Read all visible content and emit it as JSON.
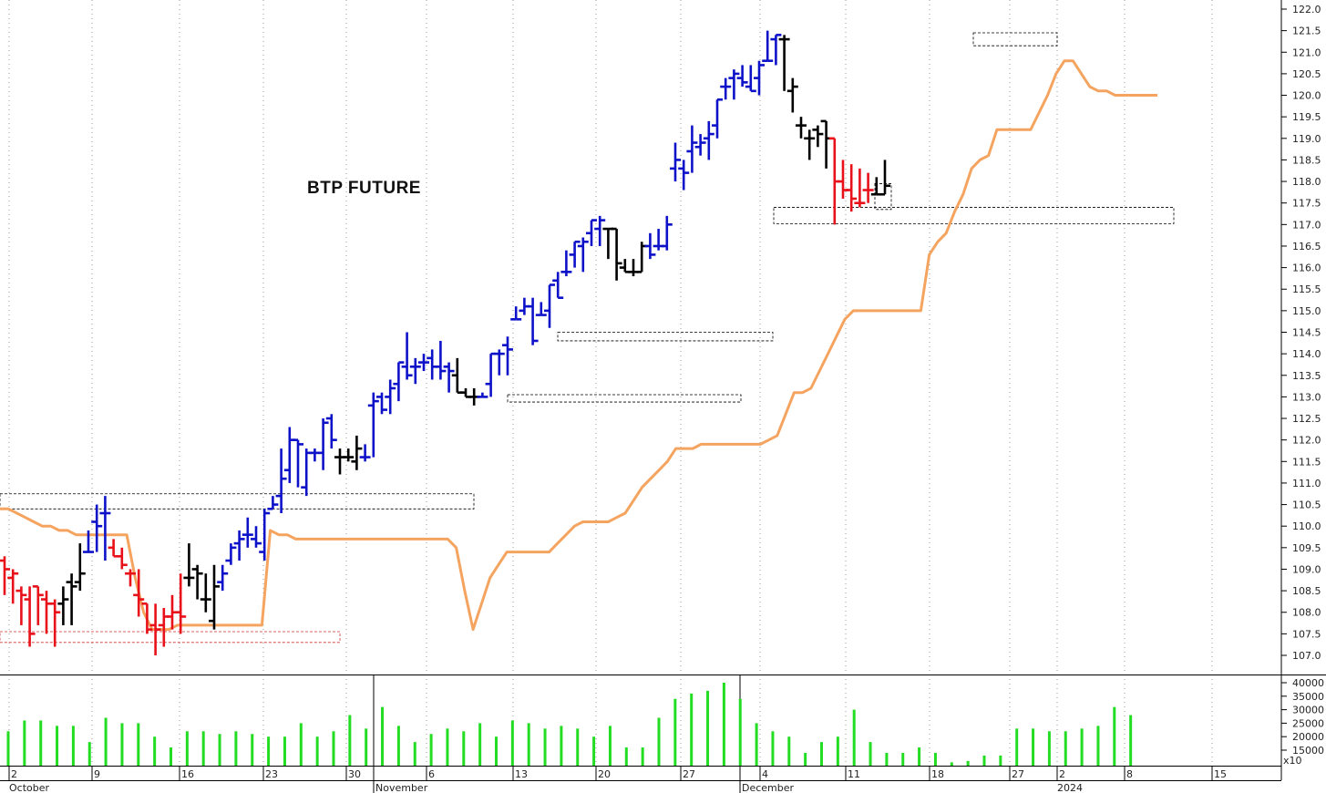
{
  "chart_data": [
    {
      "type": "ohlc",
      "title": "BTP FUTURE",
      "ylim": [
        106.6,
        122.2
      ],
      "yticks": [
        "107.0",
        "107.5",
        "108.0",
        "108.5",
        "109.0",
        "109.5",
        "110.0",
        "110.5",
        "111.0",
        "111.5",
        "112.0",
        "112.5",
        "113.0",
        "113.5",
        "114.0",
        "114.5",
        "115.0",
        "115.5",
        "116.0",
        "116.5",
        "117.0",
        "117.5",
        "118.0",
        "118.5",
        "119.0",
        "119.5",
        "120.0",
        "120.5",
        "121.0",
        "121.5",
        "122.0"
      ],
      "x_day_labels": [
        "2",
        "9",
        "16",
        "23",
        "30",
        "6",
        "13",
        "20",
        "27",
        "4",
        "11",
        "18",
        "27",
        "2",
        "8",
        "15"
      ],
      "x_month_labels": [
        "October",
        "November",
        "December",
        "2024"
      ],
      "grid": "vertical dotted",
      "colors": {
        "blue": "#0d12c9",
        "red": "#e8111a",
        "black": "#000000",
        "line": "#f5a460",
        "volume": "#22dd22"
      },
      "bars": [
        {
          "o": 109.2,
          "h": 109.3,
          "l": 108.4,
          "c": 109.0,
          "col": "red"
        },
        {
          "o": 108.8,
          "h": 109.0,
          "l": 108.2,
          "c": 108.9,
          "col": "red"
        },
        {
          "o": 108.5,
          "h": 108.6,
          "l": 107.7,
          "c": 108.4,
          "col": "red"
        },
        {
          "o": 108.3,
          "h": 108.6,
          "l": 107.2,
          "c": 107.5,
          "col": "red"
        },
        {
          "o": 108.6,
          "h": 108.6,
          "l": 107.7,
          "c": 108.4,
          "col": "red"
        },
        {
          "o": 108.3,
          "h": 108.5,
          "l": 107.5,
          "c": 108.2,
          "col": "red"
        },
        {
          "o": 108.2,
          "h": 108.3,
          "l": 107.2,
          "c": 108.0,
          "col": "red"
        },
        {
          "o": 108.2,
          "h": 108.6,
          "l": 107.7,
          "c": 108.3,
          "col": "black"
        },
        {
          "o": 108.7,
          "h": 108.9,
          "l": 107.7,
          "c": 108.6,
          "col": "black"
        },
        {
          "o": 108.7,
          "h": 109.6,
          "l": 108.5,
          "c": 108.9,
          "col": "black"
        },
        {
          "o": 109.4,
          "h": 109.9,
          "l": 109.4,
          "c": 109.4,
          "col": "blue"
        },
        {
          "o": 110.1,
          "h": 110.5,
          "l": 109.4,
          "c": 110.0,
          "col": "blue"
        },
        {
          "o": 110.3,
          "h": 110.7,
          "l": 109.2,
          "c": 110.3,
          "col": "blue"
        },
        {
          "o": 109.5,
          "h": 109.7,
          "l": 109.3,
          "c": 109.3,
          "col": "red"
        },
        {
          "o": 109.3,
          "h": 109.5,
          "l": 109.0,
          "c": 109.1,
          "col": "red"
        },
        {
          "o": 108.9,
          "h": 109.0,
          "l": 108.6,
          "c": 108.9,
          "col": "red"
        },
        {
          "o": 108.4,
          "h": 109.0,
          "l": 107.9,
          "c": 108.3,
          "col": "red"
        },
        {
          "o": 108.2,
          "h": 108.2,
          "l": 107.5,
          "c": 107.6,
          "col": "red"
        },
        {
          "o": 107.7,
          "h": 108.2,
          "l": 107.0,
          "c": 107.6,
          "col": "red"
        },
        {
          "o": 107.7,
          "h": 108.1,
          "l": 107.2,
          "c": 107.9,
          "col": "red"
        },
        {
          "o": 107.9,
          "h": 108.4,
          "l": 107.6,
          "c": 108.0,
          "col": "red"
        },
        {
          "o": 108.0,
          "h": 108.9,
          "l": 107.5,
          "c": 107.9,
          "col": "red"
        },
        {
          "o": 108.8,
          "h": 109.6,
          "l": 108.6,
          "c": 108.8,
          "col": "black"
        },
        {
          "o": 109.0,
          "h": 109.1,
          "l": 108.3,
          "c": 108.9,
          "col": "black"
        },
        {
          "o": 108.3,
          "h": 108.9,
          "l": 108.0,
          "c": 108.3,
          "col": "black"
        },
        {
          "o": 107.8,
          "h": 109.1,
          "l": 107.6,
          "c": 108.6,
          "col": "black"
        },
        {
          "o": 108.7,
          "h": 109.1,
          "l": 108.5,
          "c": 108.9,
          "col": "blue"
        },
        {
          "o": 109.2,
          "h": 109.6,
          "l": 109.1,
          "c": 109.5,
          "col": "blue"
        },
        {
          "o": 109.6,
          "h": 109.9,
          "l": 109.2,
          "c": 109.7,
          "col": "blue"
        },
        {
          "o": 109.8,
          "h": 110.2,
          "l": 109.5,
          "c": 109.8,
          "col": "blue"
        },
        {
          "o": 109.7,
          "h": 110.0,
          "l": 109.5,
          "c": 109.6,
          "col": "blue"
        },
        {
          "o": 109.4,
          "h": 110.4,
          "l": 109.2,
          "c": 110.3,
          "col": "blue"
        },
        {
          "o": 110.4,
          "h": 110.7,
          "l": 110.4,
          "c": 110.5,
          "col": "blue"
        },
        {
          "o": 110.7,
          "h": 111.8,
          "l": 110.3,
          "c": 111.1,
          "col": "blue"
        },
        {
          "o": 111.3,
          "h": 112.3,
          "l": 111.0,
          "c": 112.0,
          "col": "blue"
        },
        {
          "o": 112.0,
          "h": 112.0,
          "l": 110.9,
          "c": 111.9,
          "col": "blue"
        },
        {
          "o": 110.9,
          "h": 111.8,
          "l": 110.7,
          "c": 111.7,
          "col": "blue"
        },
        {
          "o": 111.7,
          "h": 111.8,
          "l": 111.5,
          "c": 111.7,
          "col": "blue"
        },
        {
          "o": 111.7,
          "h": 112.5,
          "l": 111.3,
          "c": 112.4,
          "col": "blue"
        },
        {
          "o": 112.5,
          "h": 112.6,
          "l": 111.8,
          "c": 112.0,
          "col": "blue"
        },
        {
          "o": 111.6,
          "h": 111.8,
          "l": 111.2,
          "c": 111.6,
          "col": "black"
        },
        {
          "o": 111.6,
          "h": 111.8,
          "l": 111.5,
          "c": 111.6,
          "col": "black"
        },
        {
          "o": 111.5,
          "h": 112.1,
          "l": 111.3,
          "c": 111.8,
          "col": "black"
        },
        {
          "o": 111.6,
          "h": 111.9,
          "l": 111.5,
          "c": 111.6,
          "col": "blue"
        },
        {
          "o": 112.8,
          "h": 113.1,
          "l": 111.6,
          "c": 112.9,
          "col": "blue"
        },
        {
          "o": 113.0,
          "h": 113.1,
          "l": 112.6,
          "c": 112.7,
          "col": "blue"
        },
        {
          "o": 113.0,
          "h": 113.4,
          "l": 112.6,
          "c": 113.2,
          "col": "blue"
        },
        {
          "o": 113.3,
          "h": 113.8,
          "l": 112.9,
          "c": 113.8,
          "col": "blue"
        },
        {
          "o": 113.7,
          "h": 114.5,
          "l": 113.4,
          "c": 113.5,
          "col": "blue"
        },
        {
          "o": 113.7,
          "h": 113.9,
          "l": 113.3,
          "c": 113.7,
          "col": "blue"
        },
        {
          "o": 113.8,
          "h": 114.0,
          "l": 113.6,
          "c": 113.8,
          "col": "blue"
        },
        {
          "o": 113.9,
          "h": 114.1,
          "l": 113.4,
          "c": 113.7,
          "col": "blue"
        },
        {
          "o": 113.7,
          "h": 114.3,
          "l": 113.4,
          "c": 113.6,
          "col": "blue"
        },
        {
          "o": 113.7,
          "h": 113.8,
          "l": 113.1,
          "c": 113.6,
          "col": "blue"
        },
        {
          "o": 113.5,
          "h": 113.9,
          "l": 113.1,
          "c": 113.1,
          "col": "black"
        },
        {
          "o": 113.1,
          "h": 113.2,
          "l": 113.0,
          "c": 113.0,
          "col": "black"
        },
        {
          "o": 113.0,
          "h": 113.2,
          "l": 112.8,
          "c": 113.0,
          "col": "black"
        },
        {
          "o": 113.0,
          "h": 113.1,
          "l": 113.0,
          "c": 113.0,
          "col": "blue"
        },
        {
          "o": 113.3,
          "h": 114.0,
          "l": 113.0,
          "c": 114.0,
          "col": "blue"
        },
        {
          "o": 114.0,
          "h": 114.1,
          "l": 113.5,
          "c": 114.0,
          "col": "blue"
        },
        {
          "o": 114.2,
          "h": 114.4,
          "l": 113.5,
          "c": 114.1,
          "col": "blue"
        },
        {
          "o": 114.8,
          "h": 115.1,
          "l": 114.8,
          "c": 114.8,
          "col": "blue"
        },
        {
          "o": 115.0,
          "h": 115.3,
          "l": 114.9,
          "c": 115.1,
          "col": "blue"
        },
        {
          "o": 115.1,
          "h": 115.3,
          "l": 114.2,
          "c": 114.3,
          "col": "blue"
        },
        {
          "o": 114.9,
          "h": 115.2,
          "l": 114.9,
          "c": 114.9,
          "col": "blue"
        },
        {
          "o": 115.0,
          "h": 115.6,
          "l": 114.6,
          "c": 115.6,
          "col": "blue"
        },
        {
          "o": 115.7,
          "h": 115.9,
          "l": 115.3,
          "c": 115.3,
          "col": "blue"
        },
        {
          "o": 115.9,
          "h": 116.4,
          "l": 115.8,
          "c": 115.9,
          "col": "blue"
        },
        {
          "o": 116.3,
          "h": 116.6,
          "l": 116.0,
          "c": 116.6,
          "col": "blue"
        },
        {
          "o": 116.5,
          "h": 116.7,
          "l": 115.9,
          "c": 116.6,
          "col": "blue"
        },
        {
          "o": 116.8,
          "h": 117.1,
          "l": 116.5,
          "c": 117.1,
          "col": "blue"
        },
        {
          "o": 116.9,
          "h": 117.2,
          "l": 116.5,
          "c": 117.1,
          "col": "blue"
        },
        {
          "o": 116.9,
          "h": 116.9,
          "l": 116.2,
          "c": 116.9,
          "col": "black"
        },
        {
          "o": 116.9,
          "h": 116.9,
          "l": 115.7,
          "c": 116.1,
          "col": "black"
        },
        {
          "o": 116.0,
          "h": 116.2,
          "l": 115.9,
          "c": 115.9,
          "col": "black"
        },
        {
          "o": 115.9,
          "h": 116.2,
          "l": 115.8,
          "c": 115.9,
          "col": "black"
        },
        {
          "o": 115.9,
          "h": 116.6,
          "l": 115.9,
          "c": 116.5,
          "col": "black"
        },
        {
          "o": 116.5,
          "h": 116.8,
          "l": 116.2,
          "c": 116.3,
          "col": "blue"
        },
        {
          "o": 116.5,
          "h": 116.9,
          "l": 116.4,
          "c": 116.5,
          "col": "blue"
        },
        {
          "o": 116.5,
          "h": 117.2,
          "l": 116.4,
          "c": 117.0,
          "col": "blue"
        },
        {
          "o": 118.3,
          "h": 118.9,
          "l": 118.0,
          "c": 118.5,
          "col": "blue"
        },
        {
          "o": 118.3,
          "h": 118.5,
          "l": 117.8,
          "c": 118.2,
          "col": "blue"
        },
        {
          "o": 118.7,
          "h": 119.3,
          "l": 118.2,
          "c": 118.9,
          "col": "blue"
        },
        {
          "o": 118.8,
          "h": 119.1,
          "l": 118.6,
          "c": 118.9,
          "col": "blue"
        },
        {
          "o": 119.0,
          "h": 119.4,
          "l": 118.5,
          "c": 119.1,
          "col": "blue"
        },
        {
          "o": 119.3,
          "h": 119.9,
          "l": 119.0,
          "c": 119.9,
          "col": "blue"
        },
        {
          "o": 120.2,
          "h": 120.4,
          "l": 119.9,
          "c": 120.2,
          "col": "blue"
        },
        {
          "o": 120.4,
          "h": 120.6,
          "l": 119.9,
          "c": 120.5,
          "col": "blue"
        },
        {
          "o": 120.4,
          "h": 120.7,
          "l": 120.2,
          "c": 120.3,
          "col": "blue"
        },
        {
          "o": 120.2,
          "h": 120.7,
          "l": 120.1,
          "c": 120.1,
          "col": "blue"
        },
        {
          "o": 120.4,
          "h": 120.8,
          "l": 120.0,
          "c": 120.7,
          "col": "blue"
        },
        {
          "o": 120.8,
          "h": 121.5,
          "l": 120.8,
          "c": 120.8,
          "col": "blue"
        },
        {
          "o": 121.3,
          "h": 121.4,
          "l": 120.7,
          "c": 121.4,
          "col": "blue"
        },
        {
          "o": 121.3,
          "h": 121.4,
          "l": 120.1,
          "c": 121.3,
          "col": "black"
        },
        {
          "o": 120.1,
          "h": 120.4,
          "l": 119.6,
          "c": 120.2,
          "col": "black"
        },
        {
          "o": 119.3,
          "h": 119.5,
          "l": 119.0,
          "c": 119.3,
          "col": "black"
        },
        {
          "o": 119.0,
          "h": 119.2,
          "l": 118.5,
          "c": 119.0,
          "col": "black"
        },
        {
          "o": 119.2,
          "h": 119.3,
          "l": 118.8,
          "c": 119.1,
          "col": "black"
        },
        {
          "o": 119.4,
          "h": 119.4,
          "l": 118.3,
          "c": 119.0,
          "col": "black"
        },
        {
          "o": 119.0,
          "h": 119.0,
          "l": 117.0,
          "c": 118.0,
          "col": "red"
        },
        {
          "o": 118.0,
          "h": 118.5,
          "l": 117.6,
          "c": 117.8,
          "col": "red"
        },
        {
          "o": 117.8,
          "h": 118.4,
          "l": 117.3,
          "c": 117.6,
          "col": "red"
        },
        {
          "o": 117.5,
          "h": 118.3,
          "l": 117.4,
          "c": 117.5,
          "col": "red"
        },
        {
          "o": 117.8,
          "h": 118.2,
          "l": 117.5,
          "c": 117.8,
          "col": "red"
        },
        {
          "o": 117.7,
          "h": 118.1,
          "l": 117.7,
          "c": 117.7,
          "col": "black"
        },
        {
          "o": 117.7,
          "h": 118.5,
          "l": 117.7,
          "c": 117.9,
          "col": "black"
        }
      ],
      "line_series": [
        110.4,
        110.4,
        110.3,
        110.2,
        110.1,
        110.0,
        110.0,
        109.9,
        109.9,
        109.8,
        109.8,
        109.8,
        109.8,
        109.8,
        109.8,
        109.8,
        108.8,
        108.0,
        107.6,
        107.6,
        107.6,
        107.7,
        107.7,
        107.7,
        107.7,
        107.7,
        107.7,
        107.7,
        107.7,
        107.7,
        107.7,
        107.7,
        109.9,
        109.8,
        109.8,
        109.7,
        109.7,
        109.7,
        109.7,
        109.7,
        109.7,
        109.7,
        109.7,
        109.7,
        109.7,
        109.7,
        109.7,
        109.7,
        109.7,
        109.7,
        109.7,
        109.7,
        109.7,
        109.7,
        109.5,
        108.5,
        107.6,
        108.2,
        108.8,
        109.1,
        109.4,
        109.4,
        109.4,
        109.4,
        109.4,
        109.4,
        109.6,
        109.8,
        110.0,
        110.1,
        110.1,
        110.1,
        110.1,
        110.2,
        110.3,
        110.6,
        110.9,
        111.1,
        111.3,
        111.5,
        111.8,
        111.8,
        111.8,
        111.9,
        111.9,
        111.9,
        111.9,
        111.9,
        111.9,
        111.9,
        111.9,
        112.0,
        112.1,
        112.6,
        113.1,
        113.1,
        113.2,
        113.6,
        114.0,
        114.4,
        114.8,
        115.0,
        115.0,
        115.0,
        115.0,
        115.0,
        115.0,
        115.0,
        115.0,
        115.0,
        116.3,
        116.6,
        116.8,
        117.3,
        117.7,
        118.3,
        118.5,
        118.6,
        119.2,
        119.2,
        119.2,
        119.2,
        119.2,
        119.6,
        120.0,
        120.5,
        120.8,
        120.8,
        120.5,
        120.2,
        120.1,
        120.1,
        120.0,
        120.0,
        120.0,
        120.0,
        120.0,
        120.0
      ],
      "range_boxes": [
        {
          "x0": 0,
          "x1": 520,
          "y0": 110.75,
          "y1": 110.4,
          "color": "#000"
        },
        {
          "x0": 0,
          "x1": 373,
          "y0": 107.55,
          "y1": 107.3,
          "color": "#c33"
        },
        {
          "x0": 612,
          "x1": 848,
          "y0": 114.5,
          "y1": 114.3,
          "color": "#000"
        },
        {
          "x0": 557,
          "x1": 813,
          "y0": 113.05,
          "y1": 112.88,
          "color": "#000"
        },
        {
          "x0": 849,
          "x1": 1288,
          "y0": 117.4,
          "y1": 117.02,
          "color": "#000"
        },
        {
          "x0": 960,
          "x1": 978,
          "y0": 117.95,
          "y1": 117.35,
          "color": "#000"
        },
        {
          "x0": 1068,
          "x1": 1160,
          "y0": 121.45,
          "y1": 121.15,
          "color": "#000"
        }
      ]
    },
    {
      "type": "bar",
      "ylim": [
        10000,
        42000
      ],
      "yticks": [
        "15000",
        "20000",
        "25000",
        "30000",
        "35000",
        "40000"
      ],
      "multiplier_label": "x10",
      "values": [
        22000,
        26000,
        26000,
        24000,
        24000,
        18000,
        27000,
        25000,
        25000,
        20000,
        16000,
        22000,
        22000,
        21000,
        22000,
        21000,
        20000,
        20000,
        25000,
        20000,
        22000,
        28000,
        23000,
        31000,
        24000,
        18000,
        21000,
        23000,
        22000,
        25000,
        20000,
        26000,
        25000,
        23000,
        24000,
        23000,
        20000,
        24000,
        16000,
        16000,
        27000,
        34000,
        36000,
        37000,
        40000,
        34000,
        25000,
        22000,
        20000,
        14000,
        18000,
        20000,
        30000,
        18000,
        14000,
        14000,
        16000,
        14000,
        10500,
        11000,
        13000,
        13000,
        23000,
        23000,
        22000,
        22000,
        23000,
        24000,
        31000,
        28000
      ]
    }
  ]
}
